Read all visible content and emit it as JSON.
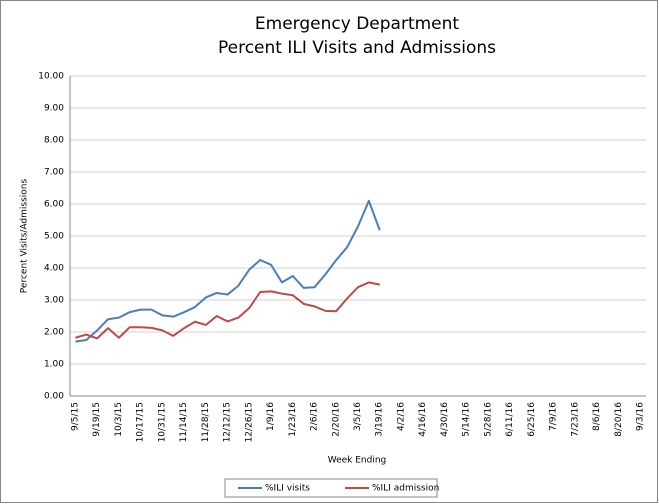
{
  "chart_data": {
    "type": "line",
    "title": "Emergency Department",
    "subtitle": "Percent ILI Visits and Admissions",
    "x_label": "Week Ending",
    "y_label": "Percent Visits/Admissions",
    "categories": [
      "9/5/15",
      null,
      "9/19/15",
      null,
      "10/3/15",
      null,
      "10/17/15",
      null,
      "10/31/15",
      null,
      "11/14/15",
      null,
      "11/28/15",
      null,
      "12/12/15",
      null,
      "12/26/15",
      null,
      "1/9/16",
      null,
      "1/23/16",
      null,
      "2/6/16",
      null,
      "2/20/16",
      null,
      "3/5/16",
      null,
      "3/19/16",
      null,
      "4/2/16",
      null,
      "4/16/16",
      null,
      "4/30/16",
      null,
      "5/14/16",
      null,
      "5/28/16",
      null,
      "6/11/16",
      null,
      "6/25/16",
      null,
      "7/9/16",
      null,
      "7/23/16",
      null,
      "8/6/16",
      null,
      "8/20/16",
      null,
      "9/3/16"
    ],
    "series": [
      {
        "name": "%ILI visits",
        "color": "#4a7ebb",
        "values": [
          1.7,
          1.75,
          2.05,
          2.4,
          2.45,
          2.62,
          2.7,
          2.7,
          2.52,
          2.48,
          2.62,
          2.78,
          3.08,
          3.22,
          3.17,
          3.45,
          3.95,
          4.25,
          4.1,
          3.55,
          3.75,
          3.38,
          3.4,
          3.8,
          4.25,
          4.65,
          5.3,
          6.1,
          5.18,
          null,
          null,
          null,
          null,
          null,
          null,
          null,
          null,
          null,
          null,
          null,
          null,
          null,
          null,
          null,
          null,
          null,
          null,
          null,
          null,
          null,
          null,
          null,
          null
        ]
      },
      {
        "name": "%ILI admission",
        "color": "#be4b48",
        "values": [
          1.82,
          1.92,
          1.8,
          2.12,
          1.82,
          2.15,
          2.15,
          2.13,
          2.05,
          1.88,
          2.12,
          2.32,
          2.22,
          2.5,
          2.33,
          2.45,
          2.75,
          3.25,
          3.27,
          3.2,
          3.15,
          2.88,
          2.8,
          2.66,
          2.65,
          3.05,
          3.4,
          3.55,
          3.48,
          null,
          null,
          null,
          null,
          null,
          null,
          null,
          null,
          null,
          null,
          null,
          null,
          null,
          null,
          null,
          null,
          null,
          null,
          null,
          null,
          null,
          null,
          null,
          null
        ]
      }
    ],
    "ylim": [
      0,
      10
    ],
    "yticks": [
      {
        "value": 0,
        "label": "0.00"
      },
      {
        "value": 1,
        "label": "1.00"
      },
      {
        "value": 2,
        "label": "2.00"
      },
      {
        "value": 3,
        "label": "3.00"
      },
      {
        "value": 4,
        "label": "4.00"
      },
      {
        "value": 5,
        "label": "5.00"
      },
      {
        "value": 6,
        "label": "6.00"
      },
      {
        "value": 7,
        "label": "7.00"
      },
      {
        "value": 8,
        "label": "8.00"
      },
      {
        "value": 9,
        "label": "9.00"
      },
      {
        "value": 10,
        "label": "10.00"
      }
    ],
    "grid": true,
    "legend": "bottom"
  }
}
